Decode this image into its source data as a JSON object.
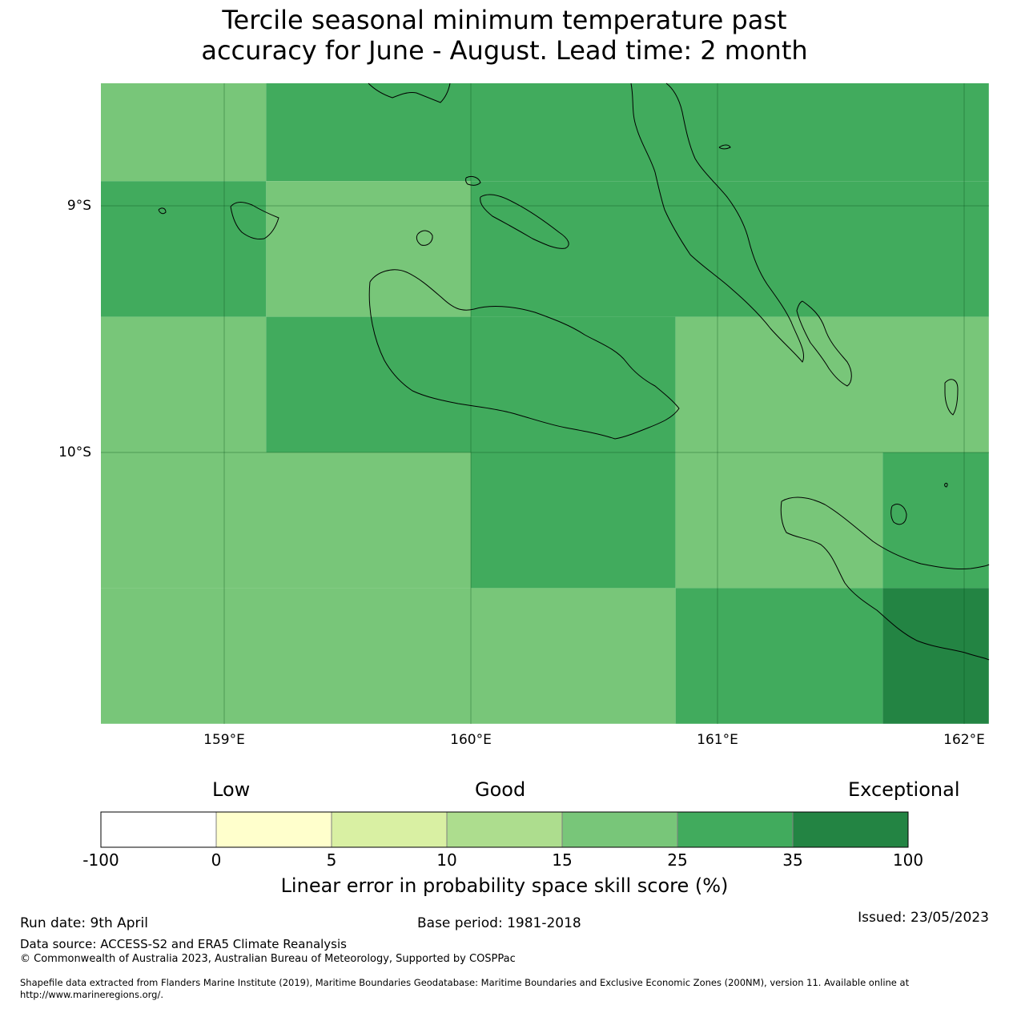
{
  "title_line1": "Tercile seasonal minimum temperature past",
  "title_line2": "accuracy for June - August. Lead time: 2 month",
  "map": {
    "lat_labels": [
      "9°S",
      "10°S"
    ],
    "lon_labels": [
      "159°E",
      "160°E",
      "161°E",
      "162°E"
    ],
    "lon_range": [
      158.5,
      162.1
    ],
    "lat_range": [
      -11.1,
      -8.5
    ],
    "cell_colors": {
      "15-25": "#78c679",
      "25-35": "#41ab5d",
      "35-100": "#238443"
    },
    "cells": [
      {
        "lon": [
          158.5,
          159.17
        ],
        "lat": [
          -8.9,
          -8.5
        ],
        "cls": "15-25"
      },
      {
        "lon": [
          159.17,
          162.1
        ],
        "lat": [
          -8.9,
          -8.5
        ],
        "cls": "25-35"
      },
      {
        "lon": [
          158.5,
          159.17
        ],
        "lat": [
          -9.45,
          -8.9
        ],
        "cls": "25-35"
      },
      {
        "lon": [
          159.17,
          160.0
        ],
        "lat": [
          -9.45,
          -8.9
        ],
        "cls": "15-25"
      },
      {
        "lon": [
          160.0,
          162.1
        ],
        "lat": [
          -9.45,
          -8.9
        ],
        "cls": "25-35"
      },
      {
        "lon": [
          158.5,
          159.17
        ],
        "lat": [
          -10.0,
          -9.45
        ],
        "cls": "15-25"
      },
      {
        "lon": [
          159.17,
          160.83
        ],
        "lat": [
          -10.0,
          -9.45
        ],
        "cls": "25-35"
      },
      {
        "lon": [
          160.83,
          162.1
        ],
        "lat": [
          -10.0,
          -9.45
        ],
        "cls": "15-25"
      },
      {
        "lon": [
          158.5,
          160.0
        ],
        "lat": [
          -10.55,
          -10.0
        ],
        "cls": "15-25"
      },
      {
        "lon": [
          160.0,
          160.83
        ],
        "lat": [
          -10.55,
          -10.0
        ],
        "cls": "25-35"
      },
      {
        "lon": [
          160.83,
          161.67
        ],
        "lat": [
          -10.55,
          -10.0
        ],
        "cls": "15-25"
      },
      {
        "lon": [
          161.67,
          162.1
        ],
        "lat": [
          -10.55,
          -10.0
        ],
        "cls": "25-35"
      },
      {
        "lon": [
          158.5,
          160.83
        ],
        "lat": [
          -11.1,
          -10.55
        ],
        "cls": "15-25"
      },
      {
        "lon": [
          160.83,
          161.67
        ],
        "lat": [
          -11.1,
          -10.55
        ],
        "cls": "25-35"
      },
      {
        "lon": [
          161.67,
          162.1
        ],
        "lat": [
          -11.1,
          -10.55
        ],
        "cls": "35-100"
      }
    ]
  },
  "colorbar": {
    "top_labels": {
      "low": "Low",
      "good": "Good",
      "exceptional": "Exceptional"
    },
    "ticks": [
      "-100",
      "0",
      "5",
      "10",
      "15",
      "25",
      "35",
      "100"
    ],
    "colors": [
      "#ffffff",
      "#ffffcc",
      "#d9f0a3",
      "#addd8e",
      "#78c679",
      "#41ab5d",
      "#238443"
    ],
    "label": "Linear error in probability space skill score (%)"
  },
  "footer": {
    "run_date": "Run date: 9th April",
    "base_period": "Base period: 1981-2018",
    "issued": "Issued: 23/05/2023",
    "data_source": "Data source: ACCESS-S2 and ERA5 Climate Reanalysis",
    "copyright": "© Commonwealth of Australia 2023, Australian Bureau of Meteorology, Supported by COSPPac",
    "shapefile_line1": "Shapefile data extracted from Flanders Marine Institute (2019), Maritime Boundaries Geodatabase: Maritime Boundaries and Exclusive Economic Zones (200NM), version 11. Available online at",
    "shapefile_line2": "http://www.marineregions.org/."
  }
}
